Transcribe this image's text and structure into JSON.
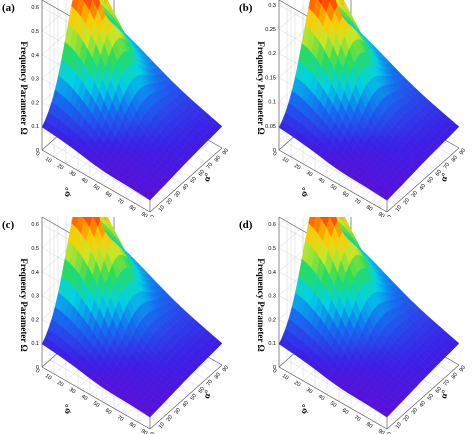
{
  "figure": {
    "panels": [
      {
        "label": "(a)",
        "zlabel": "Frequency Parameter Ω",
        "xlabel": "φ°",
        "ylabel": "α°"
      },
      {
        "label": "(b)",
        "zlabel": "Frequency Parameter Ω",
        "xlabel": "φ°",
        "ylabel": "α°"
      },
      {
        "label": "(c)",
        "zlabel": "Frequency Parameter Ω",
        "xlabel": "φ°",
        "ylabel": "α°"
      },
      {
        "label": "(d)",
        "zlabel": "Frequency Parameter Ω",
        "xlabel": "φ°",
        "ylabel": "α°"
      }
    ]
  },
  "chart_data": [
    {
      "type": "surface",
      "panel": "(a)",
      "zlabel": "Frequency Parameter Ω",
      "xlabel": "φ°",
      "ylabel": "α°",
      "x_ticks": [
        "0",
        "10",
        "20",
        "30",
        "40",
        "50",
        "60",
        "70",
        "80",
        "90"
      ],
      "y_ticks": [
        "0",
        "10",
        "20",
        "30",
        "40",
        "50",
        "60",
        "70",
        "80",
        "90"
      ],
      "z_ticks": [
        "0",
        "0.1",
        "0.2",
        "0.3",
        "0.4",
        "0.5",
        "0.6"
      ],
      "zlim": [
        0,
        0.63
      ],
      "z_range_observed": [
        0.05,
        0.62
      ],
      "colormap": "rainbow (purple → blue → cyan → green → yellow → red)"
    },
    {
      "type": "surface",
      "panel": "(b)",
      "zlabel": "Frequency Parameter Ω",
      "xlabel": "φ°",
      "ylabel": "α°",
      "x_ticks": [
        "0",
        "10",
        "20",
        "30",
        "40",
        "50",
        "60",
        "70",
        "80",
        "90"
      ],
      "y_ticks": [
        "0",
        "10",
        "20",
        "30",
        "40",
        "50",
        "60",
        "70",
        "80",
        "90"
      ],
      "z_ticks": [
        "0",
        "0.05",
        "0.1",
        "0.15",
        "0.2",
        "0.25",
        "0.3"
      ],
      "zlim": [
        0,
        0.31
      ],
      "z_range_observed": [
        0.03,
        0.3
      ],
      "colormap": "rainbow (purple → blue → cyan → green → yellow → red)"
    },
    {
      "type": "surface",
      "panel": "(c)",
      "zlabel": "Frequency Parameter Ω",
      "xlabel": "φ°",
      "ylabel": "α°",
      "x_ticks": [
        "0",
        "10",
        "20",
        "30",
        "40",
        "50",
        "60",
        "70",
        "80",
        "90"
      ],
      "y_ticks": [
        "0",
        "10",
        "20",
        "30",
        "40",
        "50",
        "60",
        "70",
        "80",
        "90"
      ],
      "z_ticks": [
        "0",
        "0.1",
        "0.2",
        "0.3",
        "0.4",
        "0.5",
        "0.6"
      ],
      "zlim": [
        0,
        0.63
      ],
      "z_range_observed": [
        0.05,
        0.62
      ],
      "colormap": "rainbow (purple → blue → cyan → green → yellow → red)"
    },
    {
      "type": "surface",
      "panel": "(d)",
      "zlabel": "Frequency Parameter Ω",
      "xlabel": "φ°",
      "ylabel": "α°",
      "x_ticks": [
        "0",
        "10",
        "20",
        "30",
        "40",
        "50",
        "60",
        "70",
        "80",
        "90"
      ],
      "y_ticks": [
        "0",
        "10",
        "20",
        "30",
        "40",
        "50",
        "60",
        "70",
        "80",
        "90"
      ],
      "z_ticks": [
        "0",
        "0.1",
        "0.2",
        "0.3",
        "0.4",
        "0.5",
        "0.6"
      ],
      "zlim": [
        0,
        0.63
      ],
      "z_range_observed": [
        0.05,
        0.62
      ],
      "colormap": "rainbow (purple → blue → cyan → green → yellow → red)"
    }
  ]
}
